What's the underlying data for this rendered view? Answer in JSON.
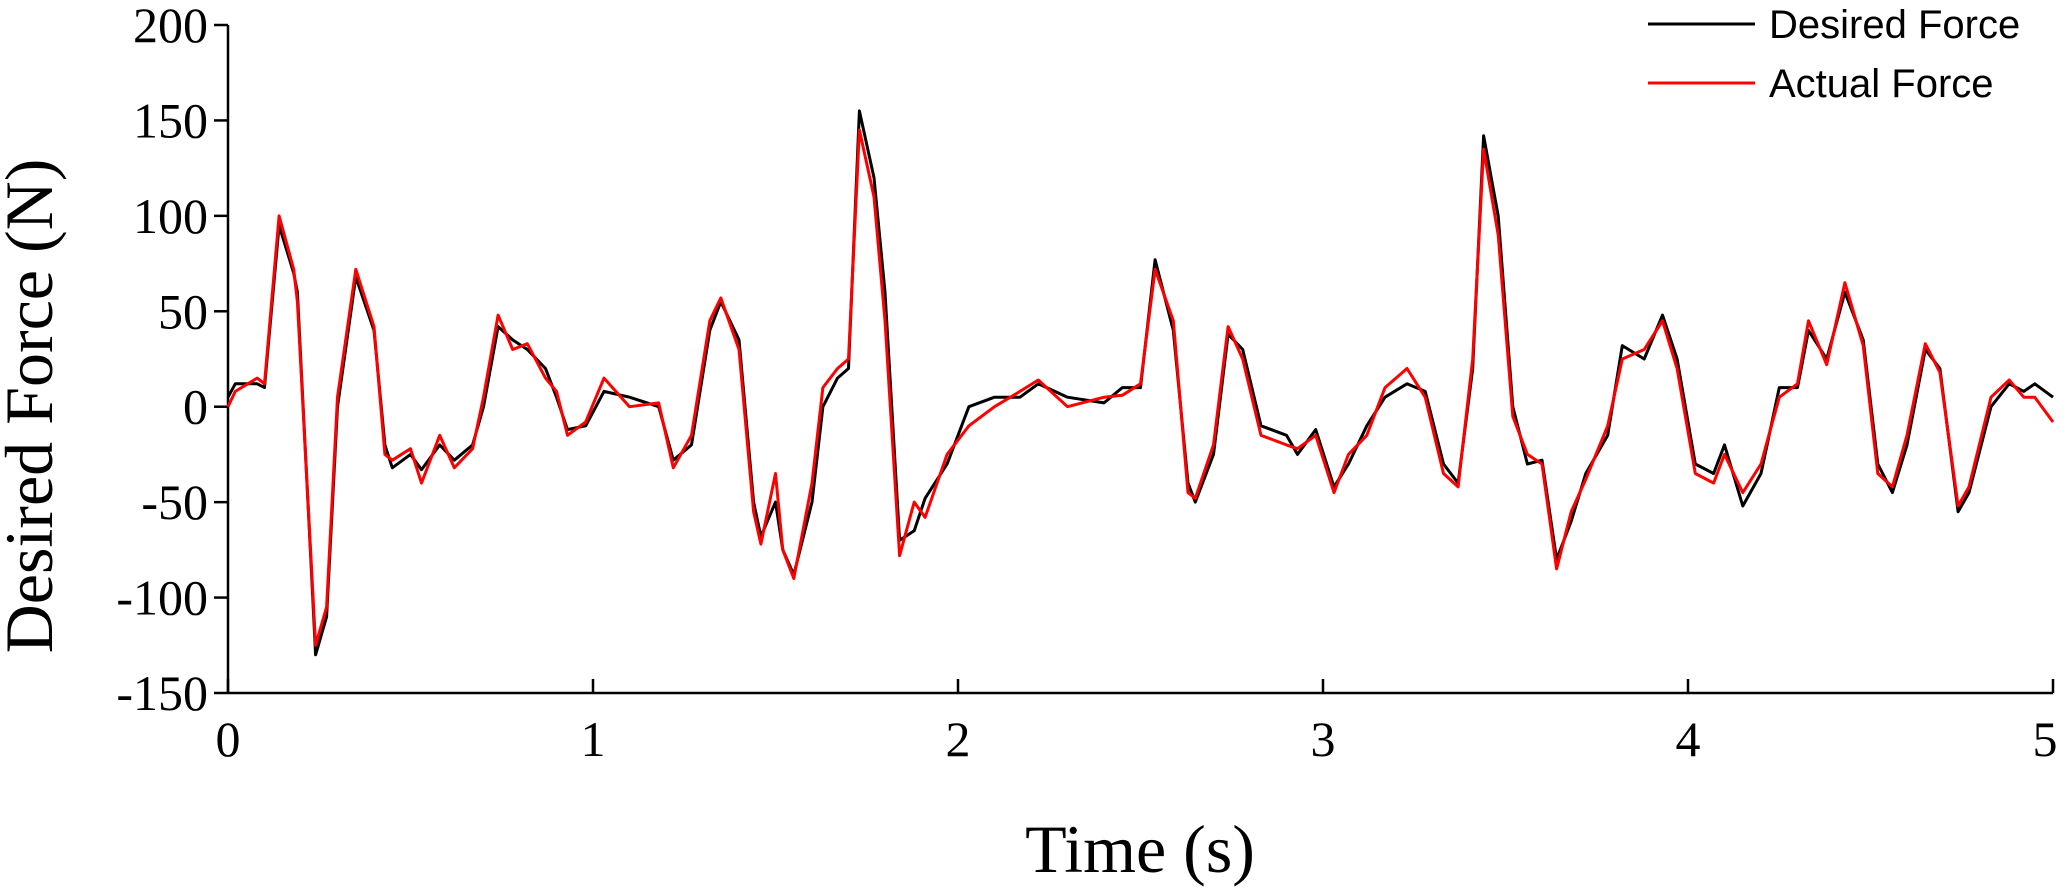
{
  "chart_data": {
    "type": "line",
    "xlabel": "Time (s)",
    "ylabel": "Desired Force (N)",
    "xlim": [
      0,
      5
    ],
    "ylim": [
      -150,
      200
    ],
    "xticks": [
      0,
      1,
      2,
      3,
      4,
      5
    ],
    "yticks": [
      -150,
      -100,
      -50,
      0,
      50,
      100,
      150,
      200
    ],
    "legend": "upper right",
    "x": [
      0,
      0.02,
      0.08,
      0.1,
      0.14,
      0.18,
      0.19,
      0.24,
      0.27,
      0.3,
      0.35,
      0.4,
      0.43,
      0.45,
      0.5,
      0.53,
      0.58,
      0.62,
      0.67,
      0.7,
      0.74,
      0.78,
      0.82,
      0.87,
      0.9,
      0.93,
      0.98,
      1.03,
      1.1,
      1.18,
      1.22,
      1.27,
      1.32,
      1.35,
      1.4,
      1.44,
      1.46,
      1.5,
      1.52,
      1.55,
      1.6,
      1.63,
      1.67,
      1.7,
      1.73,
      1.77,
      1.8,
      1.84,
      1.88,
      1.91,
      1.97,
      2.03,
      2.1,
      2.17,
      2.22,
      2.3,
      2.4,
      2.45,
      2.5,
      2.54,
      2.59,
      2.63,
      2.65,
      2.7,
      2.74,
      2.78,
      2.83,
      2.9,
      2.93,
      2.98,
      3.03,
      3.07,
      3.12,
      3.17,
      3.23,
      3.28,
      3.33,
      3.37,
      3.41,
      3.44,
      3.48,
      3.52,
      3.56,
      3.6,
      3.64,
      3.68,
      3.72,
      3.78,
      3.82,
      3.88,
      3.93,
      3.97,
      4.02,
      4.07,
      4.1,
      4.15,
      4.2,
      4.25,
      4.3,
      4.33,
      4.38,
      4.43,
      4.48,
      4.52,
      4.56,
      4.6,
      4.65,
      4.69,
      4.74,
      4.77,
      4.83,
      4.88,
      4.92,
      4.95,
      5
    ],
    "series": [
      {
        "name": "Desired Force",
        "color": "#000000",
        "values": [
          5,
          12,
          12,
          10,
          95,
          70,
          60,
          -130,
          -110,
          0,
          68,
          40,
          -20,
          -32,
          -25,
          -33,
          -20,
          -28,
          -20,
          0,
          42,
          35,
          30,
          20,
          5,
          -12,
          -10,
          8,
          5,
          0,
          -28,
          -20,
          40,
          55,
          35,
          -50,
          -68,
          -50,
          -75,
          -88,
          -50,
          0,
          15,
          20,
          155,
          120,
          60,
          -70,
          -65,
          -48,
          -30,
          0,
          5,
          5,
          12,
          5,
          2,
          10,
          10,
          77,
          40,
          -40,
          -50,
          -25,
          38,
          30,
          -10,
          -15,
          -25,
          -12,
          -42,
          -30,
          -10,
          5,
          12,
          8,
          -30,
          -40,
          20,
          142,
          100,
          0,
          -30,
          -28,
          -80,
          -60,
          -35,
          -15,
          32,
          25,
          48,
          25,
          -30,
          -35,
          -20,
          -52,
          -35,
          10,
          10,
          40,
          25,
          60,
          35,
          -30,
          -45,
          -20,
          30,
          20,
          -55,
          -45,
          0,
          12,
          8,
          12,
          5
        ]
      },
      {
        "name": "Actual Force",
        "color": "#ff0000",
        "values": [
          0,
          8,
          15,
          12,
          100,
          72,
          55,
          -125,
          -105,
          5,
          72,
          42,
          -25,
          -28,
          -22,
          -40,
          -15,
          -32,
          -22,
          5,
          48,
          30,
          33,
          15,
          8,
          -15,
          -8,
          15,
          0,
          2,
          -32,
          -15,
          45,
          57,
          30,
          -55,
          -72,
          -35,
          -75,
          -90,
          -40,
          10,
          20,
          25,
          145,
          110,
          45,
          -78,
          -50,
          -58,
          -25,
          -10,
          0,
          8,
          14,
          0,
          5,
          6,
          12,
          72,
          45,
          -45,
          -48,
          -20,
          42,
          25,
          -15,
          -20,
          -22,
          -15,
          -45,
          -25,
          -15,
          10,
          20,
          5,
          -35,
          -42,
          25,
          135,
          90,
          -5,
          -25,
          -30,
          -85,
          -55,
          -38,
          -10,
          25,
          30,
          45,
          20,
          -35,
          -40,
          -25,
          -45,
          -30,
          5,
          12,
          45,
          22,
          65,
          32,
          -35,
          -42,
          -15,
          33,
          18,
          -52,
          -42,
          5,
          14,
          5,
          5,
          -8
        ]
      }
    ]
  }
}
